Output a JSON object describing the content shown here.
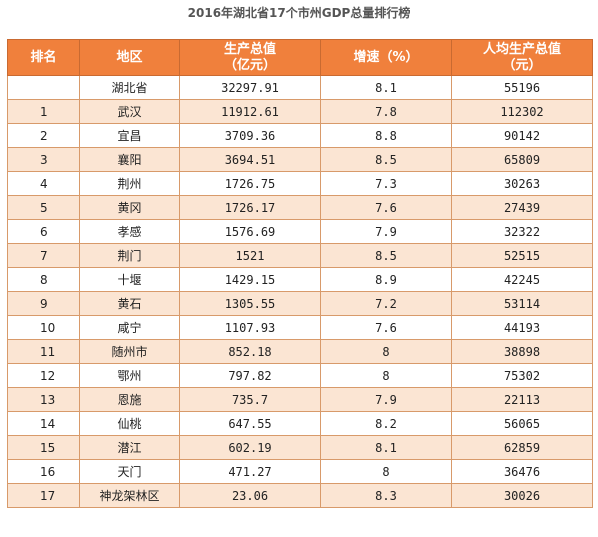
{
  "title": "2016年湖北省17个市州GDP总量排行榜",
  "table": {
    "headers": [
      "排名",
      "地区",
      "生产总值\n（亿元）",
      "增速（%）",
      "人均生产总值\n（元）"
    ],
    "rows": [
      {
        "rank": "",
        "region": "湖北省",
        "gdp": "32297.91",
        "growth": "8.1",
        "per_capita": "55196"
      },
      {
        "rank": "1",
        "region": "武汉",
        "gdp": "11912.61",
        "growth": "7.8",
        "per_capita": "112302"
      },
      {
        "rank": "2",
        "region": "宜昌",
        "gdp": "3709.36",
        "growth": "8.8",
        "per_capita": "90142"
      },
      {
        "rank": "3",
        "region": "襄阳",
        "gdp": "3694.51",
        "growth": "8.5",
        "per_capita": "65809"
      },
      {
        "rank": "4",
        "region": "荆州",
        "gdp": "1726.75",
        "growth": "7.3",
        "per_capita": "30263"
      },
      {
        "rank": "5",
        "region": "黄冈",
        "gdp": "1726.17",
        "growth": "7.6",
        "per_capita": "27439"
      },
      {
        "rank": "6",
        "region": "孝感",
        "gdp": "1576.69",
        "growth": "7.9",
        "per_capita": "32322"
      },
      {
        "rank": "7",
        "region": "荆门",
        "gdp": "1521",
        "growth": "8.5",
        "per_capita": "52515"
      },
      {
        "rank": "8",
        "region": "十堰",
        "gdp": "1429.15",
        "growth": "8.9",
        "per_capita": "42245"
      },
      {
        "rank": "9",
        "region": "黄石",
        "gdp": "1305.55",
        "growth": "7.2",
        "per_capita": "53114"
      },
      {
        "rank": "10",
        "region": "咸宁",
        "gdp": "1107.93",
        "growth": "7.6",
        "per_capita": "44193"
      },
      {
        "rank": "11",
        "region": "随州市",
        "gdp": "852.18",
        "growth": "8",
        "per_capita": "38898"
      },
      {
        "rank": "12",
        "region": "鄂州",
        "gdp": "797.82",
        "growth": "8",
        "per_capita": "75302"
      },
      {
        "rank": "13",
        "region": "恩施",
        "gdp": "735.7",
        "growth": "7.9",
        "per_capita": "22113"
      },
      {
        "rank": "14",
        "region": "仙桃",
        "gdp": "647.55",
        "growth": "8.2",
        "per_capita": "56065"
      },
      {
        "rank": "15",
        "region": "潜江",
        "gdp": "602.19",
        "growth": "8.1",
        "per_capita": "62859"
      },
      {
        "rank": "16",
        "region": "天门",
        "gdp": "471.27",
        "growth": "8",
        "per_capita": "36476"
      },
      {
        "rank": "17",
        "region": "神龙架林区",
        "gdp": "23.06",
        "growth": "8.3",
        "per_capita": "30026"
      }
    ]
  },
  "colors": {
    "header_bg": "#f0803c",
    "header_text": "#ffffff",
    "row_alt_bg": "#fbe5d3",
    "border": "#d89a6a"
  }
}
